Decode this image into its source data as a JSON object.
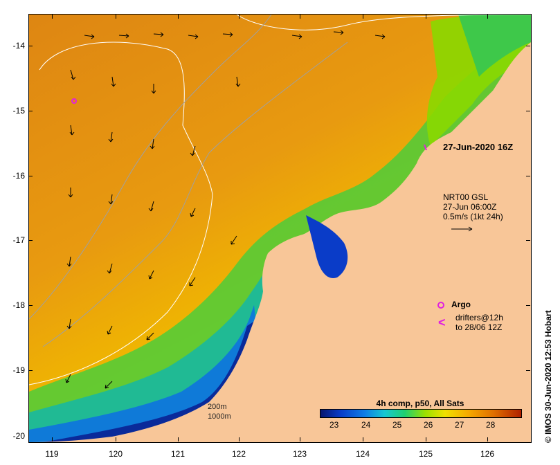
{
  "map": {
    "date_label": "27-Jun-2020 16Z",
    "nrt_lines": [
      "NRT00 GSL",
      "27-Jun 06:00Z",
      "0.5m/s (1kt 24h)"
    ],
    "argo_label": "Argo",
    "drifter_lines": [
      "drifters@12h",
      "to 28/06 12Z"
    ],
    "drifter_symbol": "<",
    "contour_lines": [
      "200m",
      "1000m"
    ],
    "credit": "© IMOS 30-Jun-2020 12:53 Hobart",
    "axes": {
      "lat_ticks": [
        "-14",
        "-15",
        "-16",
        "-17",
        "-18",
        "-19",
        "-20"
      ],
      "lon_ticks": [
        "119",
        "120",
        "121",
        "122",
        "123",
        "124",
        "125",
        "126"
      ]
    }
  },
  "colorbar": {
    "title": "4h comp, p50, All Sats",
    "labels": [
      "23",
      "24",
      "25",
      "26",
      "27",
      "28"
    ],
    "colors": {
      "land": "#f8c698",
      "warm": "#e08a10",
      "cool": "#0a2a9a",
      "marker": "#e020e0"
    }
  }
}
